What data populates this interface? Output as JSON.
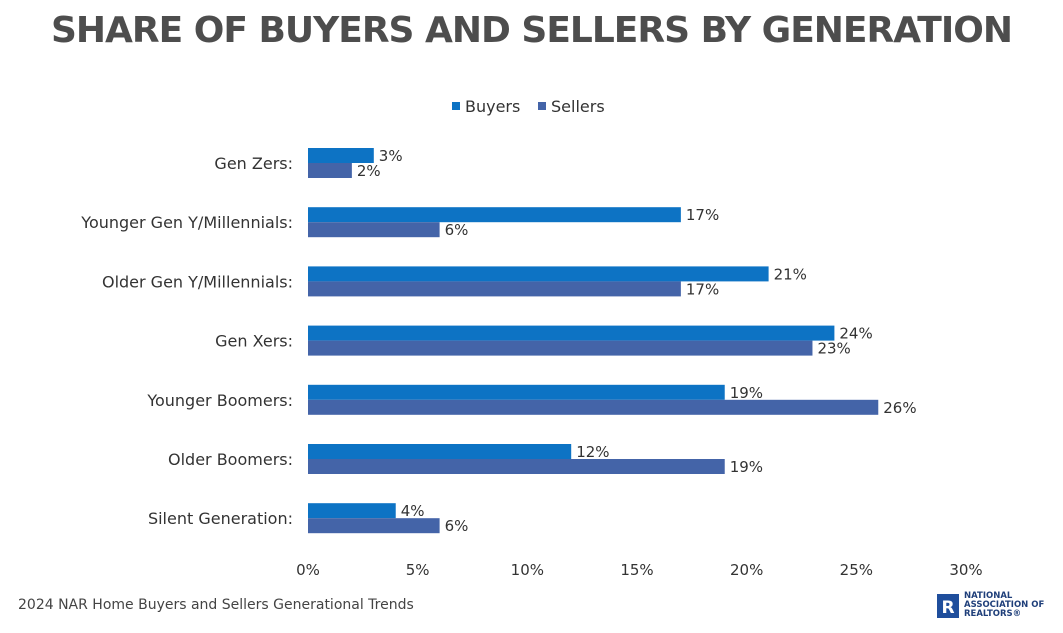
{
  "chart_data": {
    "type": "bar",
    "orientation": "horizontal",
    "title": "SHARE OF BUYERS AND SELLERS BY GENERATION",
    "categories": [
      "Gen Zers:",
      "Younger Gen Y/Millennials:",
      "Older Gen Y/Millennials:",
      "Gen Xers:",
      "Younger Boomers:",
      "Older Boomers:",
      "Silent Generation:"
    ],
    "series": [
      {
        "name": "Buyers",
        "color": "#0d73c4",
        "values": [
          3,
          17,
          21,
          24,
          19,
          12,
          4
        ]
      },
      {
        "name": "Sellers",
        "color": "#4464a8",
        "values": [
          2,
          6,
          17,
          23,
          26,
          19,
          6
        ]
      }
    ],
    "xlim": [
      0,
      30
    ],
    "xticks": [
      0,
      5,
      10,
      15,
      20,
      25,
      30
    ],
    "value_suffix": "%",
    "legend_position": "top-center",
    "grid": false,
    "xlabel": "",
    "ylabel": ""
  },
  "footer": {
    "source": "2024 NAR Home Buyers and Sellers Generational Trends",
    "logo_mark": "R",
    "logo_lines": [
      "NATIONAL",
      "ASSOCIATION OF",
      "REALTORS®"
    ]
  }
}
